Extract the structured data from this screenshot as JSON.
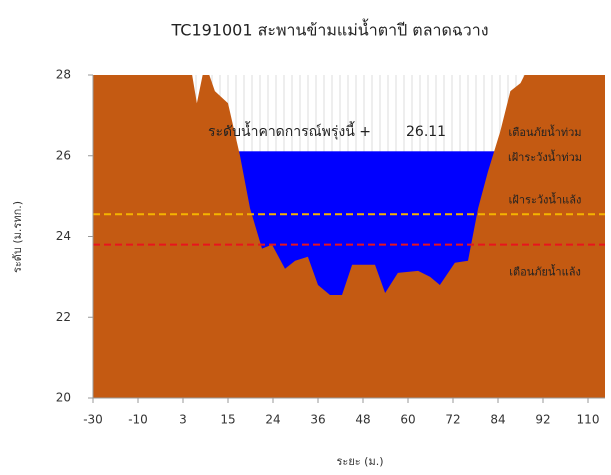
{
  "chart_data": {
    "type": "area",
    "title": "TC191001 สะพานข้ามแม่น้ำตาปี ตลาดฉวาง",
    "x_label": "ระยะ (ม.)",
    "y_label": "ระดับ (ม.รทก.)",
    "xlim": [
      -30,
      117
    ],
    "xticks": [
      -30,
      -10,
      3,
      15,
      24,
      36,
      48,
      60,
      72,
      84,
      92,
      110
    ],
    "ylim": [
      20,
      28
    ],
    "yticks": [
      20,
      22,
      24,
      26,
      28
    ],
    "grid": false,
    "series": [
      {
        "color": "#c45a12",
        "x": [
          -30,
          4.9,
          6.7,
          8.9,
          11.5,
          15,
          17.4,
          19.4,
          21.8,
          23.8,
          27.2,
          29.9,
          33.3,
          36,
          39.2,
          42.4,
          45.1,
          51.2,
          53.9,
          57.3,
          62.7,
          65.9,
          68.5,
          72.5,
          76,
          78.7,
          81.3,
          84.4,
          86.2,
          88,
          89.8,
          117
        ],
        "values": [
          28.3,
          28.3,
          27.3,
          28.3,
          27.6,
          27.3,
          26.0,
          24.7,
          23.7,
          23.8,
          23.2,
          23.4,
          23.5,
          22.8,
          22.55,
          22.55,
          23.3,
          23.3,
          22.6,
          23.1,
          23.15,
          23.0,
          22.8,
          23.35,
          23.4,
          24.7,
          25.6,
          26.6,
          27.6,
          27.8,
          28.3,
          28.3
        ]
      }
    ],
    "water_level": {
      "label": "ระดับน้ำคาดการณ์พรุ่งนี้ +",
      "value": 26.11,
      "color": "#0000ff"
    },
    "thresholds": [
      {
        "name": "เฝ้าระวังน้ำแล้ง",
        "value": 24.55,
        "color": "#f5b400"
      },
      {
        "name": "เตือนภัยน้ำแล้ง",
        "value": 23.8,
        "color": "#e8141e"
      }
    ],
    "annotations": [
      "เตือนภัยน้ำท่วม",
      "เฝ้าระวังน้ำท่วม"
    ]
  }
}
